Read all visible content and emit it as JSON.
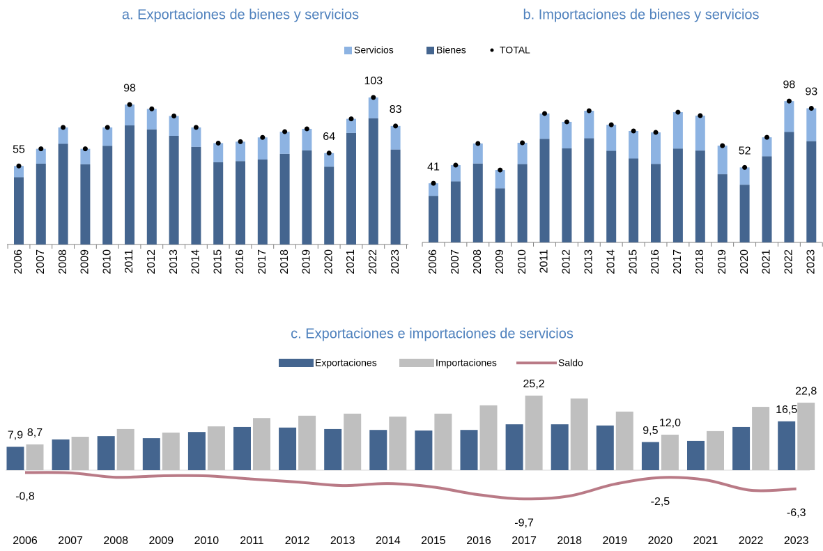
{
  "chart_data": [
    {
      "type": "bar",
      "stacked": true,
      "title": "a. Exportaciones de bienes y servicios",
      "categories": [
        "2006",
        "2007",
        "2008",
        "2009",
        "2010",
        "2011",
        "2012",
        "2013",
        "2014",
        "2015",
        "2016",
        "2017",
        "2018",
        "2019",
        "2020",
        "2021",
        "2022",
        "2023"
      ],
      "series": [
        {
          "name": "Servicios",
          "color": "#8db3e2",
          "values": [
            7.9,
            10.4,
            11.5,
            10.8,
            12.9,
            14.6,
            14.4,
            13.9,
            13.6,
            13.4,
            13.6,
            15.5,
            15.5,
            15.1,
            9.5,
            9.9,
            14.6,
            16.5
          ]
        },
        {
          "name": "Bienes",
          "color": "#44658f",
          "values": [
            47.1,
            56.6,
            70.5,
            56.2,
            69.1,
            83.4,
            80.6,
            76.1,
            68.4,
            57.6,
            58.4,
            59.5,
            63.5,
            65.9,
            54.5,
            78.1,
            88.4,
            66.5
          ]
        },
        {
          "name": "TOTAL",
          "marker": "dot",
          "color": "#000000",
          "values": [
            55,
            67,
            82,
            67,
            82,
            98,
            95,
            90,
            82,
            71,
            72,
            75,
            79,
            81,
            64,
            88,
            103,
            83
          ],
          "value_labels": [
            "55",
            null,
            null,
            null,
            null,
            "98",
            null,
            null,
            null,
            null,
            null,
            null,
            null,
            null,
            "64",
            null,
            "103",
            "83"
          ]
        }
      ]
    },
    {
      "type": "bar",
      "stacked": true,
      "title": "b. Importaciones de bienes y servicios",
      "categories": [
        "2006",
        "2007",
        "2008",
        "2009",
        "2010",
        "2011",
        "2012",
        "2013",
        "2014",
        "2015",
        "2016",
        "2017",
        "2018",
        "2019",
        "2020",
        "2021",
        "2022",
        "2023"
      ],
      "series": [
        {
          "color": "#8db3e2",
          "values": [
            8.7,
            11.3,
            13.9,
            12.7,
            14.8,
            17.6,
            18.4,
            19.1,
            18.1,
            19.1,
            21.9,
            25.2,
            24.2,
            19.8,
            12.0,
            13.2,
            21.4,
            22.8
          ]
        },
        {
          "color": "#44658f",
          "values": [
            32.3,
            42.3,
            54.7,
            37.5,
            54.3,
            71.8,
            65.2,
            72.2,
            63.5,
            58.2,
            54.4,
            65.1,
            63.7,
            47.3,
            40.0,
            59.7,
            76.6,
            70.2
          ]
        },
        {
          "marker": "dot",
          "color": "#000000",
          "values": [
            41,
            53.6,
            68.6,
            50.2,
            69.1,
            89.4,
            83.6,
            91.3,
            81.6,
            77.3,
            76.3,
            90.3,
            87.9,
            67.1,
            52,
            72.9,
            98,
            93
          ],
          "value_labels": [
            "41",
            null,
            null,
            null,
            null,
            null,
            null,
            null,
            null,
            null,
            null,
            null,
            null,
            null,
            "52",
            null,
            "98",
            "93"
          ]
        }
      ]
    },
    {
      "type": "bar",
      "title": "c. Exportaciones e importaciones de servicios",
      "categories": [
        "2006",
        "2007",
        "2008",
        "2009",
        "2010",
        "2011",
        "2012",
        "2013",
        "2014",
        "2015",
        "2016",
        "2017",
        "2018",
        "2019",
        "2020",
        "2021",
        "2022",
        "2023"
      ],
      "series": [
        {
          "name": "Exportaciones",
          "type": "bar",
          "color": "#44658f",
          "values": [
            7.9,
            10.4,
            11.5,
            10.8,
            12.9,
            14.6,
            14.4,
            13.9,
            13.6,
            13.4,
            13.6,
            15.5,
            15.5,
            15.1,
            9.5,
            9.9,
            14.6,
            16.5
          ],
          "value_labels": [
            "7,9",
            null,
            null,
            null,
            null,
            null,
            null,
            null,
            null,
            null,
            null,
            null,
            null,
            null,
            "9,5",
            null,
            null,
            "16,5"
          ]
        },
        {
          "name": "Importaciones",
          "type": "bar",
          "color": "#bfbfbf",
          "values": [
            8.7,
            11.3,
            13.9,
            12.7,
            14.8,
            17.6,
            18.4,
            19.1,
            18.1,
            19.1,
            21.9,
            25.2,
            24.2,
            19.8,
            12.0,
            13.2,
            21.4,
            22.8
          ],
          "value_labels": [
            "8,7",
            null,
            null,
            null,
            null,
            null,
            null,
            null,
            null,
            null,
            null,
            "25,2",
            null,
            null,
            "12,0",
            null,
            null,
            "22,8"
          ]
        },
        {
          "name": "Saldo",
          "type": "line",
          "color": "#b97a86",
          "values": [
            -0.8,
            -0.9,
            -2.4,
            -1.9,
            -1.9,
            -3.0,
            -4.0,
            -5.2,
            -4.5,
            -5.7,
            -8.3,
            -9.7,
            -8.7,
            -4.7,
            -2.5,
            -3.3,
            -6.8,
            -6.3
          ],
          "value_labels": [
            "-0,8",
            null,
            null,
            null,
            null,
            null,
            null,
            null,
            null,
            null,
            null,
            "-9,7",
            null,
            null,
            "-2,5",
            null,
            null,
            "-6,3"
          ]
        }
      ]
    }
  ]
}
